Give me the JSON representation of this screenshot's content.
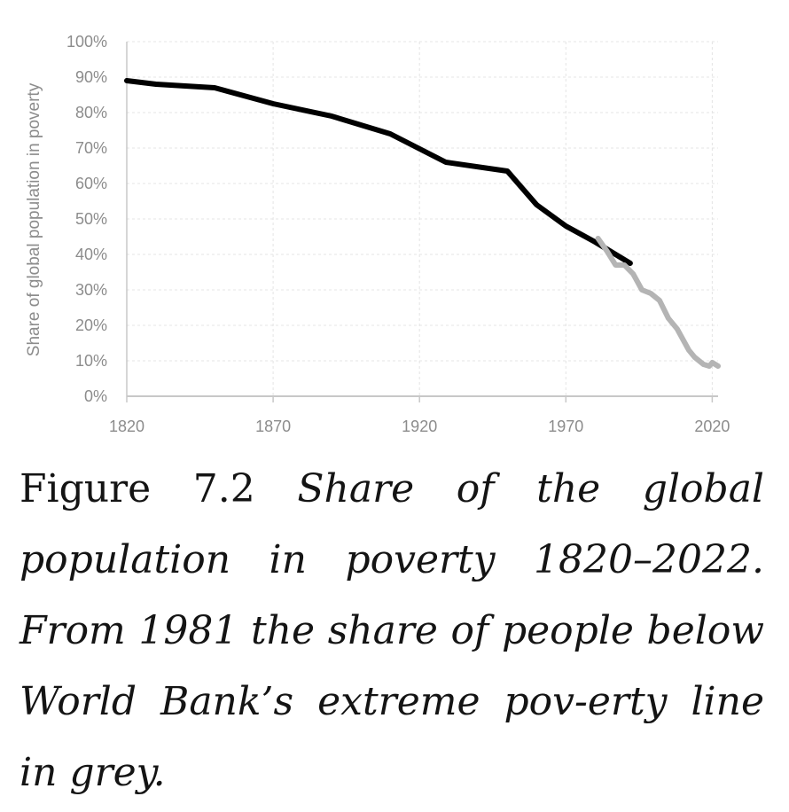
{
  "chart_data": {
    "type": "line",
    "title": "",
    "xlabel": "",
    "ylabel": "Share of global population in poverty",
    "xlim": [
      1820,
      2022
    ],
    "ylim": [
      0,
      100
    ],
    "x_ticks": [
      "1820",
      "1870",
      "1920",
      "1970",
      "2020"
    ],
    "y_ticks": [
      "0%",
      "10%",
      "20%",
      "30%",
      "40%",
      "50%",
      "60%",
      "70%",
      "80%",
      "90%",
      "100%"
    ],
    "grid": true,
    "legend": "none",
    "series": [
      {
        "color": "#000000",
        "x": [
          1820,
          1830,
          1850,
          1870,
          1890,
          1910,
          1929,
          1950,
          1960,
          1970,
          1980,
          1992
        ],
        "y": [
          89,
          88,
          87,
          82.5,
          79,
          74,
          66,
          63.5,
          54,
          48,
          43.5,
          37.5
        ]
      },
      {
        "color": "#b4b4b4",
        "x": [
          1981,
          1984,
          1987,
          1990,
          1993,
          1996,
          1999,
          2002,
          2005,
          2008,
          2010,
          2012,
          2014,
          2017,
          2019,
          2020,
          2022
        ],
        "y": [
          44.5,
          41,
          37,
          37,
          34.5,
          30,
          29,
          27,
          22,
          19,
          16,
          13,
          11,
          9,
          8.5,
          9.5,
          8.5
        ]
      }
    ]
  },
  "caption": {
    "label": "Figure 7.2 ",
    "text": "Share of the global population in poverty 1820–2022. From 1981 the share of people below World Bank’s extreme pov-erty line in grey."
  }
}
